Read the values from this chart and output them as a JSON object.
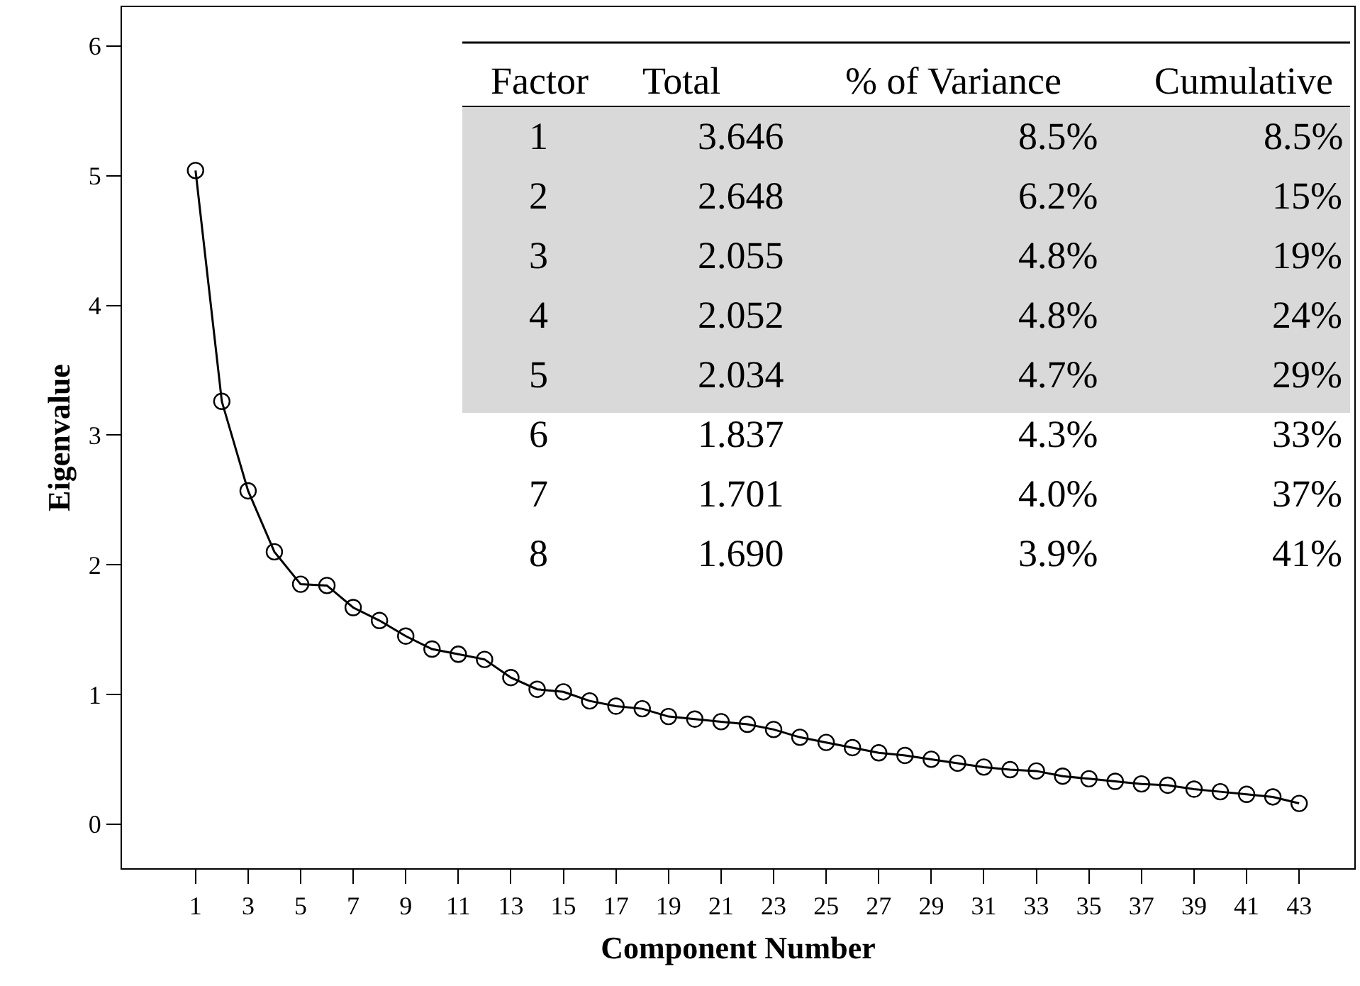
{
  "chart_data": {
    "type": "line",
    "xlabel": "Component Number",
    "ylabel": "Eigenvalue",
    "x": [
      1,
      2,
      3,
      4,
      5,
      6,
      7,
      8,
      9,
      10,
      11,
      12,
      13,
      14,
      15,
      16,
      17,
      18,
      19,
      20,
      21,
      22,
      23,
      24,
      25,
      26,
      27,
      28,
      29,
      30,
      31,
      32,
      33,
      34,
      35,
      36,
      37,
      38,
      39,
      40,
      41,
      42,
      43
    ],
    "series": [
      {
        "color": "#000000",
        "values": [
          5.04,
          3.26,
          2.57,
          2.1,
          1.85,
          1.84,
          1.67,
          1.57,
          1.45,
          1.35,
          1.31,
          1.27,
          1.13,
          1.04,
          1.02,
          0.95,
          0.91,
          0.89,
          0.83,
          0.81,
          0.79,
          0.77,
          0.73,
          0.67,
          0.63,
          0.59,
          0.55,
          0.53,
          0.5,
          0.47,
          0.44,
          0.42,
          0.41,
          0.37,
          0.35,
          0.33,
          0.31,
          0.3,
          0.27,
          0.25,
          0.23,
          0.21,
          0.16
        ]
      }
    ],
    "xlim": [
      -1.8,
      45.1
    ],
    "xticks": [
      1,
      3,
      5,
      7,
      9,
      11,
      13,
      15,
      17,
      19,
      21,
      23,
      25,
      27,
      29,
      31,
      33,
      35,
      37,
      39,
      41,
      43
    ],
    "ylim": [
      -0.34,
      6.3
    ],
    "yticks": [
      0,
      1,
      2,
      3,
      4,
      5,
      6
    ],
    "marker": "circle",
    "line_style": "solid",
    "annotations": [
      "Factor",
      "Total",
      "% of Variance",
      "Cumulative",
      "1",
      "3.646",
      "8.5%",
      "8.5%",
      "2",
      "2.648",
      "6.2%",
      "15%",
      "3",
      "2.055",
      "4.8%",
      "19%",
      "4",
      "2.052",
      "4.8%",
      "24%",
      "5",
      "2.034",
      "4.7%",
      "29%",
      "6",
      "1.837",
      "4.3%",
      "33%",
      "7",
      "1.701",
      "4.0%",
      "37%",
      "8",
      "1.690",
      "3.9%",
      "41%"
    ]
  }
}
